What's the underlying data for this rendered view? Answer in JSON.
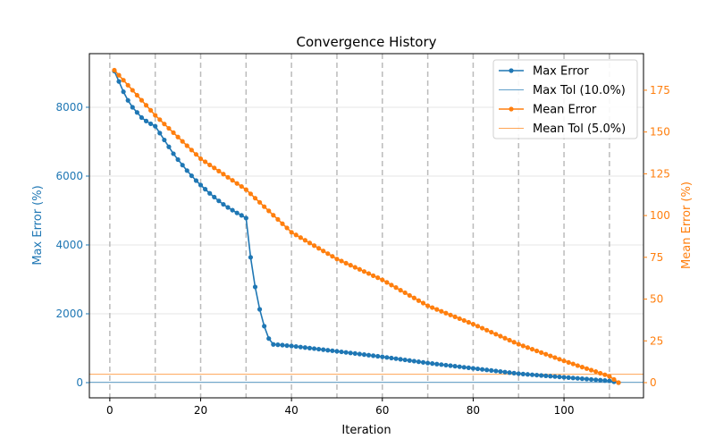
{
  "chart_data": {
    "type": "line",
    "title": "Convergence History",
    "xlabel": "Iteration",
    "ylabel_left": "Max Error (%)",
    "ylabel_right": "Mean Error (%)",
    "xlim": [
      -4.5,
      117.5
    ],
    "ylim_left": [
      -442,
      9558
    ],
    "ylim_right": [
      -9.1,
      196.9
    ],
    "x_ticks": [
      0,
      20,
      40,
      60,
      80,
      100
    ],
    "y_left_ticks": [
      0,
      2000,
      4000,
      6000,
      8000
    ],
    "y_right_ticks": [
      0,
      25,
      50,
      75,
      100,
      125,
      150,
      175
    ],
    "vertical_markers": [
      0,
      10,
      20,
      30,
      40,
      50,
      60,
      70,
      80,
      90,
      100,
      110
    ],
    "grid": true,
    "legend_position": "top-right",
    "colors": {
      "max": "#1f77b4",
      "mean": "#ff7f0e"
    },
    "series": [
      {
        "name": "Max Error",
        "axis": "left",
        "x_start": 1,
        "values": [
          9050,
          8750,
          8450,
          8200,
          8000,
          7850,
          7700,
          7600,
          7520,
          7450,
          7250,
          7050,
          6850,
          6650,
          6480,
          6320,
          6160,
          6010,
          5870,
          5740,
          5620,
          5500,
          5390,
          5280,
          5180,
          5090,
          5010,
          4930,
          4860,
          4780,
          3640,
          2780,
          2130,
          1640,
          1280,
          1110,
          1100,
          1090,
          1075,
          1065,
          1050,
          1034,
          1019,
          1003,
          988,
          972,
          957,
          941,
          926,
          910,
          894,
          878,
          862,
          846,
          830,
          814,
          798,
          782,
          766,
          750,
          732,
          714,
          696,
          678,
          660,
          642,
          624,
          606,
          588,
          570,
          555,
          539,
          524,
          508,
          493,
          477,
          462,
          446,
          431,
          415,
          400,
          384,
          369,
          353,
          338,
          322,
          307,
          291,
          276,
          260,
          250,
          239,
          229,
          218,
          208,
          197,
          187,
          176,
          166,
          155,
          145,
          134,
          124,
          113,
          103,
          92,
          82,
          71,
          61,
          50,
          25,
          0
        ]
      },
      {
        "name": "Max Tol (10.0%)",
        "axis": "left",
        "value": 10
      },
      {
        "name": "Mean Error",
        "axis": "right",
        "x_start": 1,
        "values": [
          187,
          184,
          181,
          178,
          175,
          172,
          169,
          166,
          163,
          160,
          157.4,
          154.8,
          152.2,
          149.6,
          147,
          144.4,
          141.8,
          139.2,
          136.6,
          134,
          132.2,
          130.3,
          128.5,
          126.6,
          124.8,
          122.9,
          121.1,
          119.2,
          117.4,
          115.5,
          113,
          110.4,
          107.9,
          105.3,
          102.8,
          100.2,
          97.7,
          95.1,
          92.6,
          90,
          88.4,
          86.8,
          85.2,
          83.6,
          82,
          80.4,
          78.8,
          77.2,
          75.6,
          74,
          72.8,
          71.5,
          70.3,
          69,
          67.8,
          66.5,
          65.3,
          64,
          62.8,
          61.5,
          60,
          58.4,
          56.9,
          55.3,
          53.8,
          52.2,
          50.7,
          49.1,
          47.6,
          46,
          44.9,
          43.8,
          42.7,
          41.6,
          40.5,
          39.4,
          38.3,
          37.2,
          36.1,
          35,
          33.8,
          32.6,
          31.4,
          30.2,
          29,
          27.8,
          26.6,
          25.4,
          24.2,
          23,
          22,
          21,
          20,
          19,
          18,
          17,
          16,
          15,
          14,
          13,
          12.1,
          11.2,
          10.2,
          9.3,
          8.4,
          7.5,
          6.6,
          5.6,
          4.7,
          3.7,
          1.9,
          0
        ]
      },
      {
        "name": "Mean Tol (5.0%)",
        "axis": "right",
        "value": 5
      }
    ]
  }
}
